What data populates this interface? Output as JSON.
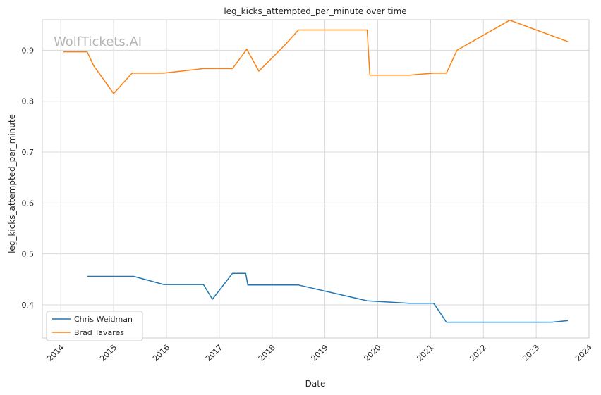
{
  "chart_data": {
    "type": "line",
    "title": "leg_kicks_attempted_per_minute over time",
    "xlabel": "Date",
    "ylabel": "leg_kicks_attempted_per_minute",
    "watermark": "WolfTickets.AI",
    "xlim": [
      2013.65,
      2024.0
    ],
    "ylim": [
      0.335,
      0.96
    ],
    "x_ticks": [
      2014,
      2015,
      2016,
      2017,
      2018,
      2019,
      2020,
      2021,
      2022,
      2023,
      2024
    ],
    "x_tick_labels": [
      "2014",
      "2015",
      "2016",
      "2017",
      "2018",
      "2019",
      "2020",
      "2021",
      "2022",
      "2023",
      "2024"
    ],
    "y_ticks": [
      0.4,
      0.5,
      0.6,
      0.7,
      0.8,
      0.9
    ],
    "y_tick_labels": [
      "0.4",
      "0.5",
      "0.6",
      "0.7",
      "0.8",
      "0.9"
    ],
    "grid": true,
    "legend_position": "lower-left",
    "series": [
      {
        "name": "Chris Weidman",
        "color": "#1f77b4",
        "x": [
          2014.5,
          2015.38,
          2015.95,
          2016.7,
          2016.87,
          2017.25,
          2017.5,
          2017.54,
          2018.5,
          2019.8,
          2020.6,
          2021.06,
          2021.3,
          2023.3,
          2023.6
        ],
        "y": [
          0.456,
          0.456,
          0.44,
          0.44,
          0.411,
          0.462,
          0.462,
          0.439,
          0.439,
          0.408,
          0.403,
          0.403,
          0.366,
          0.366,
          0.369
        ]
      },
      {
        "name": "Brad Tavares",
        "color": "#ff7f0e",
        "x": [
          2014.05,
          2014.5,
          2014.62,
          2015.0,
          2015.35,
          2015.95,
          2016.7,
          2017.25,
          2017.52,
          2017.75,
          2018.25,
          2018.5,
          2019.8,
          2019.85,
          2020.6,
          2021.06,
          2021.3,
          2021.5,
          2022.5,
          2023.6
        ],
        "y": [
          0.897,
          0.897,
          0.87,
          0.815,
          0.855,
          0.855,
          0.864,
          0.864,
          0.902,
          0.859,
          0.911,
          0.94,
          0.94,
          0.851,
          0.851,
          0.855,
          0.855,
          0.9,
          0.959,
          0.917
        ]
      }
    ]
  }
}
